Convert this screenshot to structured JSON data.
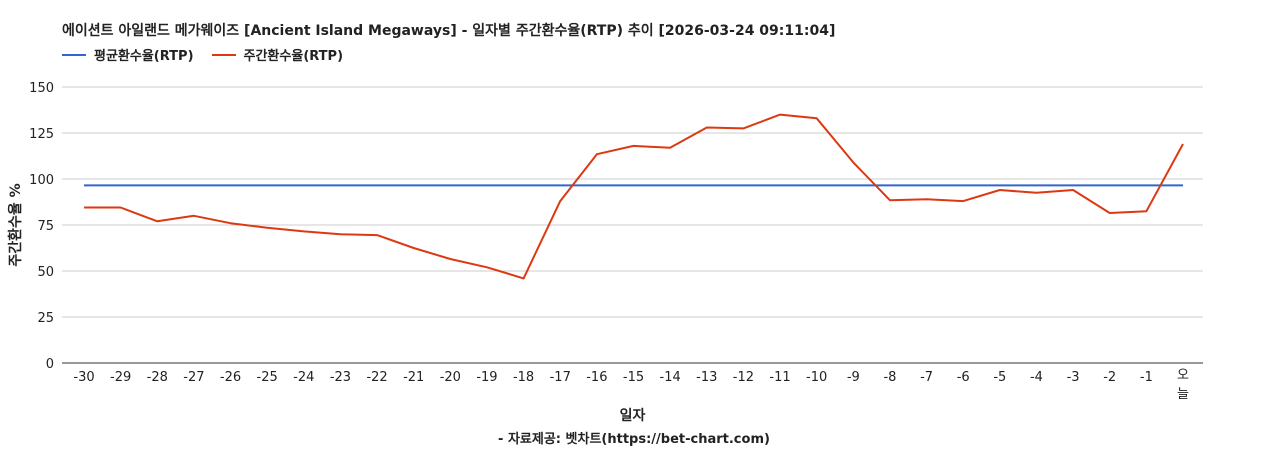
{
  "chart_data": {
    "type": "line",
    "title": "에이션트 아일랜드 메가웨이즈 [Ancient Island Megaways] - 일자별 주간환수율(RTP) 추이 [2026-03-24 09:11:04]",
    "xlabel": "일자",
    "ylabel": "주간환수율 %",
    "ylim": [
      0,
      150
    ],
    "yticks": [
      0,
      25,
      50,
      75,
      100,
      125,
      150
    ],
    "grid": true,
    "legend_position": "top-left",
    "categories": [
      "-30",
      "-29",
      "-28",
      "-27",
      "-26",
      "-25",
      "-24",
      "-23",
      "-22",
      "-21",
      "-20",
      "-19",
      "-18",
      "-17",
      "-16",
      "-15",
      "-14",
      "-13",
      "-12",
      "-11",
      "-10",
      "-9",
      "-8",
      "-7",
      "-6",
      "-5",
      "-4",
      "-3",
      "-2",
      "-1",
      "오늘"
    ],
    "series": [
      {
        "name": "평균환수율(RTP)",
        "color": "#3366cc",
        "values": [
          96.5,
          96.5,
          96.5,
          96.5,
          96.5,
          96.5,
          96.5,
          96.5,
          96.5,
          96.5,
          96.5,
          96.5,
          96.5,
          96.5,
          96.5,
          96.5,
          96.5,
          96.5,
          96.5,
          96.5,
          96.5,
          96.5,
          96.5,
          96.5,
          96.5,
          96.5,
          96.5,
          96.5,
          96.5,
          96.5,
          96.5
        ]
      },
      {
        "name": "주간환수율(RTP)",
        "color": "#dc3912",
        "values": [
          84.5,
          84.5,
          77,
          80,
          76,
          73.5,
          71.5,
          70,
          69.5,
          62.5,
          56.5,
          52,
          46,
          88,
          113.5,
          118,
          117,
          128,
          127.5,
          135,
          133,
          109,
          88.5,
          89,
          88,
          94,
          92.5,
          94,
          81.5,
          82.5,
          119
        ]
      }
    ]
  },
  "footer": "- 자료제공: 벳차트(https://bet-chart.com)"
}
